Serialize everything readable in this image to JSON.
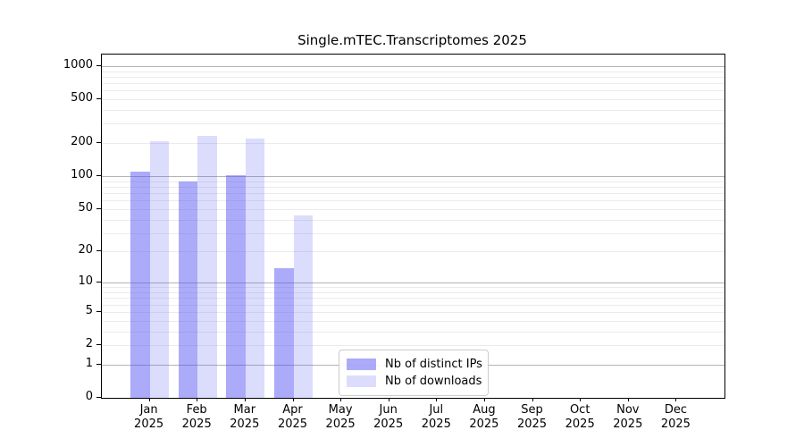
{
  "chart_data": {
    "type": "bar",
    "title": "Single.mTEC.Transcriptomes 2025",
    "categories": [
      {
        "month": "Jan",
        "year": "2025"
      },
      {
        "month": "Feb",
        "year": "2025"
      },
      {
        "month": "Mar",
        "year": "2025"
      },
      {
        "month": "Apr",
        "year": "2025"
      },
      {
        "month": "May",
        "year": "2025"
      },
      {
        "month": "Jun",
        "year": "2025"
      },
      {
        "month": "Jul",
        "year": "2025"
      },
      {
        "month": "Aug",
        "year": "2025"
      },
      {
        "month": "Sep",
        "year": "2025"
      },
      {
        "month": "Oct",
        "year": "2025"
      },
      {
        "month": "Nov",
        "year": "2025"
      },
      {
        "month": "Dec",
        "year": "2025"
      }
    ],
    "series": [
      {
        "name": "Nb of distinct IPs",
        "color": "rgba(80,80,245,0.48)",
        "values": [
          110,
          89,
          103,
          14,
          0,
          0,
          0,
          0,
          0,
          0,
          0,
          0
        ]
      },
      {
        "name": "Nb of downloads",
        "color": "rgba(80,80,245,0.20)",
        "values": [
          210,
          233,
          221,
          44,
          0,
          0,
          0,
          0,
          0,
          0,
          0,
          0
        ]
      }
    ],
    "y_axis": {
      "scale": "log10(1+x)",
      "tick_labels": [
        1000,
        500,
        200,
        100,
        50,
        20,
        10,
        5,
        2,
        1,
        0
      ],
      "major_gridlines": [
        1,
        10,
        100,
        1000
      ],
      "range_max": 1290
    },
    "x_axis": {
      "label_lines": [
        "month",
        "year"
      ]
    },
    "legend": {
      "position": "inside-lower-center",
      "entries": [
        "Nb of distinct IPs",
        "Nb of downloads"
      ]
    },
    "grid": true,
    "colors": {
      "axis": "#000000",
      "grid_major": "#b3b3b3",
      "grid_minor": "#ebebeb",
      "background": "#ffffff",
      "text": "#000000"
    }
  }
}
